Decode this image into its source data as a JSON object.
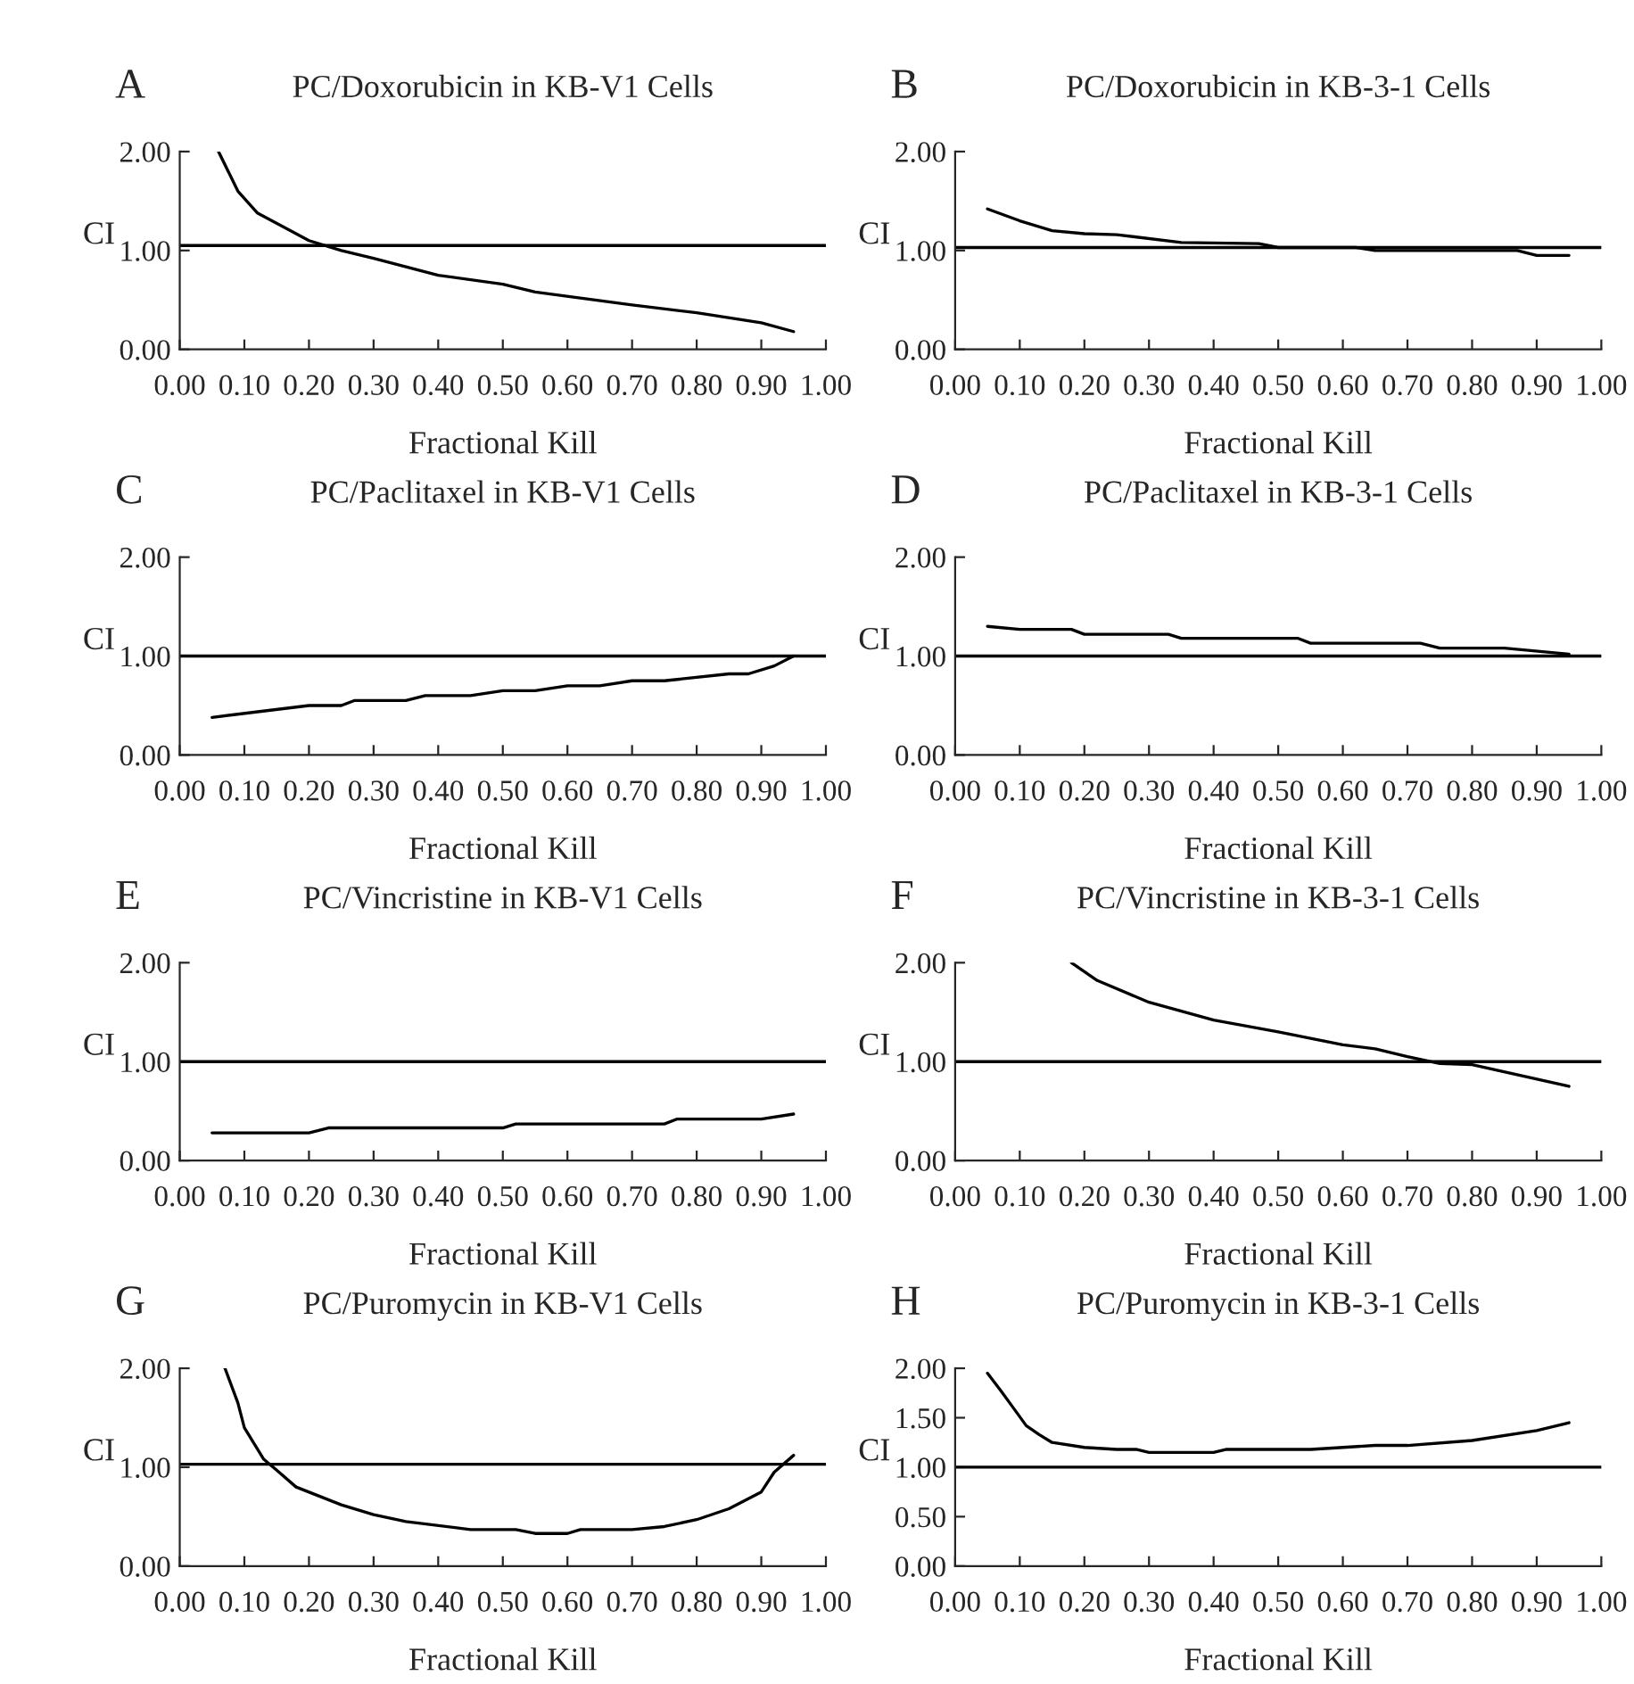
{
  "chart_data": [
    {
      "type": "line",
      "title": "PC/Doxorubicin in KB-V1 Cells",
      "xlabel": "Fractional Kill",
      "ylabel": "CI",
      "annotations": [
        "A"
      ],
      "xlim": [
        0,
        1
      ],
      "ylim": [
        0,
        2
      ],
      "xticks": [
        {
          "value": 0,
          "label": "0.00"
        },
        {
          "value": 0.1,
          "label": "0.10"
        },
        {
          "value": 0.2,
          "label": "0.20"
        },
        {
          "value": 0.3,
          "label": "0.30"
        },
        {
          "value": 0.4,
          "label": "0.40"
        },
        {
          "value": 0.5,
          "label": "0.50"
        },
        {
          "value": 0.6,
          "label": "0.60"
        },
        {
          "value": 0.7,
          "label": "0.70"
        },
        {
          "value": 0.8,
          "label": "0.80"
        },
        {
          "value": 0.9,
          "label": "0.90"
        },
        {
          "value": 1,
          "label": "1.00"
        }
      ],
      "yticks": [
        {
          "value": 0,
          "label": "0.00"
        },
        {
          "value": 1,
          "label": "1.00"
        },
        {
          "value": 2,
          "label": "2.00"
        }
      ],
      "grid": false,
      "legend": false,
      "ref_lines": [
        {
          "axis": "y",
          "value": 1.05,
          "color": "#000000"
        }
      ],
      "series": [
        {
          "color": "#000000",
          "x": [
            0.06,
            0.09,
            0.12,
            0.2,
            0.25,
            0.3,
            0.4,
            0.5,
            0.55,
            0.7,
            0.8,
            0.9,
            0.95
          ],
          "values": [
            2.0,
            1.6,
            1.38,
            1.1,
            1.0,
            0.92,
            0.75,
            0.66,
            0.58,
            0.45,
            0.37,
            0.27,
            0.18
          ]
        }
      ]
    },
    {
      "type": "line",
      "title": "PC/Doxorubicin in KB-3-1 Cells",
      "xlabel": "Fractional Kill",
      "ylabel": "CI",
      "annotations": [
        "B"
      ],
      "xlim": [
        0,
        1
      ],
      "ylim": [
        0,
        2
      ],
      "xticks": [
        {
          "value": 0,
          "label": "0.00"
        },
        {
          "value": 0.1,
          "label": "0.10"
        },
        {
          "value": 0.2,
          "label": "0.20"
        },
        {
          "value": 0.3,
          "label": "0.30"
        },
        {
          "value": 0.4,
          "label": "0.40"
        },
        {
          "value": 0.5,
          "label": "0.50"
        },
        {
          "value": 0.6,
          "label": "0.60"
        },
        {
          "value": 0.7,
          "label": "0.70"
        },
        {
          "value": 0.8,
          "label": "0.80"
        },
        {
          "value": 0.9,
          "label": "0.90"
        },
        {
          "value": 1,
          "label": "1.00"
        }
      ],
      "yticks": [
        {
          "value": 0,
          "label": "0.00"
        },
        {
          "value": 1,
          "label": "1.00"
        },
        {
          "value": 2,
          "label": "2.00"
        }
      ],
      "grid": false,
      "legend": false,
      "ref_lines": [
        {
          "axis": "y",
          "value": 1.03,
          "color": "#000000"
        }
      ],
      "series": [
        {
          "color": "#000000",
          "x": [
            0.05,
            0.1,
            0.15,
            0.2,
            0.25,
            0.35,
            0.47,
            0.5,
            0.62,
            0.65,
            0.87,
            0.9,
            0.95
          ],
          "values": [
            1.42,
            1.3,
            1.2,
            1.17,
            1.16,
            1.08,
            1.07,
            1.03,
            1.03,
            1.0,
            1.0,
            0.95,
            0.95
          ]
        }
      ]
    },
    {
      "type": "line",
      "title": "PC/Paclitaxel in KB-V1 Cells",
      "xlabel": "Fractional Kill",
      "ylabel": "CI",
      "annotations": [
        "C"
      ],
      "xlim": [
        0,
        1
      ],
      "ylim": [
        0,
        2
      ],
      "xticks": [
        {
          "value": 0,
          "label": "0.00"
        },
        {
          "value": 0.1,
          "label": "0.10"
        },
        {
          "value": 0.2,
          "label": "0.20"
        },
        {
          "value": 0.3,
          "label": "0.30"
        },
        {
          "value": 0.4,
          "label": "0.40"
        },
        {
          "value": 0.5,
          "label": "0.50"
        },
        {
          "value": 0.6,
          "label": "0.60"
        },
        {
          "value": 0.7,
          "label": "0.70"
        },
        {
          "value": 0.8,
          "label": "0.80"
        },
        {
          "value": 0.9,
          "label": "0.90"
        },
        {
          "value": 1,
          "label": "1.00"
        }
      ],
      "yticks": [
        {
          "value": 0,
          "label": "0.00"
        },
        {
          "value": 1,
          "label": "1.00"
        },
        {
          "value": 2,
          "label": "2.00"
        }
      ],
      "grid": false,
      "legend": false,
      "ref_lines": [
        {
          "axis": "y",
          "value": 1,
          "color": "#000000"
        }
      ],
      "series": [
        {
          "color": "#000000",
          "x": [
            0.05,
            0.2,
            0.25,
            0.27,
            0.35,
            0.38,
            0.45,
            0.5,
            0.55,
            0.6,
            0.65,
            0.7,
            0.75,
            0.85,
            0.88,
            0.92,
            0.95
          ],
          "values": [
            0.38,
            0.5,
            0.5,
            0.55,
            0.55,
            0.6,
            0.6,
            0.65,
            0.65,
            0.7,
            0.7,
            0.75,
            0.75,
            0.82,
            0.82,
            0.9,
            1.0
          ]
        }
      ]
    },
    {
      "type": "line",
      "title": "PC/Paclitaxel in KB-3-1 Cells",
      "xlabel": "Fractional Kill",
      "ylabel": "CI",
      "annotations": [
        "D"
      ],
      "xlim": [
        0,
        1
      ],
      "ylim": [
        0,
        2
      ],
      "xticks": [
        {
          "value": 0,
          "label": "0.00"
        },
        {
          "value": 0.1,
          "label": "0.10"
        },
        {
          "value": 0.2,
          "label": "0.20"
        },
        {
          "value": 0.3,
          "label": "0.30"
        },
        {
          "value": 0.4,
          "label": "0.40"
        },
        {
          "value": 0.5,
          "label": "0.50"
        },
        {
          "value": 0.6,
          "label": "0.60"
        },
        {
          "value": 0.7,
          "label": "0.70"
        },
        {
          "value": 0.8,
          "label": "0.80"
        },
        {
          "value": 0.9,
          "label": "0.90"
        },
        {
          "value": 1,
          "label": "1.00"
        }
      ],
      "yticks": [
        {
          "value": 0,
          "label": "0.00"
        },
        {
          "value": 1,
          "label": "1.00"
        },
        {
          "value": 2,
          "label": "2.00"
        }
      ],
      "grid": false,
      "legend": false,
      "ref_lines": [
        {
          "axis": "y",
          "value": 1,
          "color": "#000000"
        }
      ],
      "series": [
        {
          "color": "#000000",
          "x": [
            0.05,
            0.1,
            0.18,
            0.2,
            0.33,
            0.35,
            0.53,
            0.55,
            0.72,
            0.75,
            0.85,
            0.95
          ],
          "values": [
            1.3,
            1.27,
            1.27,
            1.22,
            1.22,
            1.18,
            1.18,
            1.13,
            1.13,
            1.08,
            1.08,
            1.02
          ]
        }
      ]
    },
    {
      "type": "line",
      "title": "PC/Vincristine in KB-V1 Cells",
      "xlabel": "Fractional Kill",
      "ylabel": "CI",
      "annotations": [
        "E"
      ],
      "xlim": [
        0,
        1
      ],
      "ylim": [
        0,
        2
      ],
      "xticks": [
        {
          "value": 0,
          "label": "0.00"
        },
        {
          "value": 0.1,
          "label": "0.10"
        },
        {
          "value": 0.2,
          "label": "0.20"
        },
        {
          "value": 0.3,
          "label": "0.30"
        },
        {
          "value": 0.4,
          "label": "0.40"
        },
        {
          "value": 0.5,
          "label": "0.50"
        },
        {
          "value": 0.6,
          "label": "0.60"
        },
        {
          "value": 0.7,
          "label": "0.70"
        },
        {
          "value": 0.8,
          "label": "0.80"
        },
        {
          "value": 0.9,
          "label": "0.90"
        },
        {
          "value": 1,
          "label": "1.00"
        }
      ],
      "yticks": [
        {
          "value": 0,
          "label": "0.00"
        },
        {
          "value": 1,
          "label": "1.00"
        },
        {
          "value": 2,
          "label": "2.00"
        }
      ],
      "grid": false,
      "legend": false,
      "ref_lines": [
        {
          "axis": "y",
          "value": 1,
          "color": "#000000"
        }
      ],
      "series": [
        {
          "color": "#000000",
          "x": [
            0.05,
            0.2,
            0.23,
            0.5,
            0.52,
            0.75,
            0.77,
            0.9,
            0.95
          ],
          "values": [
            0.28,
            0.28,
            0.33,
            0.33,
            0.37,
            0.37,
            0.42,
            0.42,
            0.47
          ]
        }
      ]
    },
    {
      "type": "line",
      "title": "PC/Vincristine in KB-3-1 Cells",
      "xlabel": "Fractional Kill",
      "ylabel": "CI",
      "annotations": [
        "F"
      ],
      "xlim": [
        0,
        1
      ],
      "ylim": [
        0,
        2
      ],
      "xticks": [
        {
          "value": 0,
          "label": "0.00"
        },
        {
          "value": 0.1,
          "label": "0.10"
        },
        {
          "value": 0.2,
          "label": "0.20"
        },
        {
          "value": 0.3,
          "label": "0.30"
        },
        {
          "value": 0.4,
          "label": "0.40"
        },
        {
          "value": 0.5,
          "label": "0.50"
        },
        {
          "value": 0.6,
          "label": "0.60"
        },
        {
          "value": 0.7,
          "label": "0.70"
        },
        {
          "value": 0.8,
          "label": "0.80"
        },
        {
          "value": 0.9,
          "label": "0.90"
        },
        {
          "value": 1,
          "label": "1.00"
        }
      ],
      "yticks": [
        {
          "value": 0,
          "label": "0.00"
        },
        {
          "value": 1,
          "label": "1.00"
        },
        {
          "value": 2,
          "label": "2.00"
        }
      ],
      "grid": false,
      "legend": false,
      "ref_lines": [
        {
          "axis": "y",
          "value": 1,
          "color": "#000000"
        }
      ],
      "series": [
        {
          "color": "#000000",
          "x": [
            0.18,
            0.22,
            0.3,
            0.4,
            0.5,
            0.6,
            0.65,
            0.7,
            0.75,
            0.8,
            0.95
          ],
          "values": [
            2.0,
            1.82,
            1.6,
            1.42,
            1.3,
            1.17,
            1.13,
            1.05,
            0.98,
            0.97,
            0.75
          ]
        }
      ]
    },
    {
      "type": "line",
      "title": "PC/Puromycin in KB-V1 Cells",
      "xlabel": "Fractional Kill",
      "ylabel": "CI",
      "annotations": [
        "G"
      ],
      "xlim": [
        0,
        1
      ],
      "ylim": [
        0,
        2
      ],
      "xticks": [
        {
          "value": 0,
          "label": "0.00"
        },
        {
          "value": 0.1,
          "label": "0.10"
        },
        {
          "value": 0.2,
          "label": "0.20"
        },
        {
          "value": 0.3,
          "label": "0.30"
        },
        {
          "value": 0.4,
          "label": "0.40"
        },
        {
          "value": 0.5,
          "label": "0.50"
        },
        {
          "value": 0.6,
          "label": "0.60"
        },
        {
          "value": 0.7,
          "label": "0.70"
        },
        {
          "value": 0.8,
          "label": "0.80"
        },
        {
          "value": 0.9,
          "label": "0.90"
        },
        {
          "value": 1,
          "label": "1.00"
        }
      ],
      "yticks": [
        {
          "value": 0,
          "label": "0.00"
        },
        {
          "value": 1,
          "label": "1.00"
        },
        {
          "value": 2,
          "label": "2.00"
        }
      ],
      "grid": false,
      "legend": false,
      "ref_lines": [
        {
          "axis": "y",
          "value": 1.03,
          "color": "#000000"
        }
      ],
      "series": [
        {
          "color": "#000000",
          "x": [
            0.07,
            0.09,
            0.1,
            0.13,
            0.15,
            0.18,
            0.25,
            0.3,
            0.35,
            0.45,
            0.52,
            0.55,
            0.6,
            0.62,
            0.7,
            0.75,
            0.8,
            0.85,
            0.9,
            0.92,
            0.95
          ],
          "values": [
            2.0,
            1.65,
            1.4,
            1.08,
            0.97,
            0.8,
            0.62,
            0.52,
            0.45,
            0.37,
            0.37,
            0.33,
            0.33,
            0.37,
            0.37,
            0.4,
            0.47,
            0.58,
            0.75,
            0.95,
            1.12
          ]
        }
      ]
    },
    {
      "type": "line",
      "title": "PC/Puromycin in KB-3-1 Cells",
      "xlabel": "Fractional Kill",
      "ylabel": "CI",
      "annotations": [
        "H"
      ],
      "xlim": [
        0,
        1
      ],
      "ylim": [
        0,
        2
      ],
      "xticks": [
        {
          "value": 0,
          "label": "0.00"
        },
        {
          "value": 0.1,
          "label": "0.10"
        },
        {
          "value": 0.2,
          "label": "0.20"
        },
        {
          "value": 0.3,
          "label": "0.30"
        },
        {
          "value": 0.4,
          "label": "0.40"
        },
        {
          "value": 0.5,
          "label": "0.50"
        },
        {
          "value": 0.6,
          "label": "0.60"
        },
        {
          "value": 0.7,
          "label": "0.70"
        },
        {
          "value": 0.8,
          "label": "0.80"
        },
        {
          "value": 0.9,
          "label": "0.90"
        },
        {
          "value": 1,
          "label": "1.00"
        }
      ],
      "yticks": [
        {
          "value": 0,
          "label": "0.00"
        },
        {
          "value": 0.5,
          "label": "0.50"
        },
        {
          "value": 1,
          "label": "1.00"
        },
        {
          "value": 1.5,
          "label": "1.50"
        },
        {
          "value": 2,
          "label": "2.00"
        }
      ],
      "grid": false,
      "legend": false,
      "ref_lines": [
        {
          "axis": "y",
          "value": 1,
          "color": "#000000"
        }
      ],
      "series": [
        {
          "color": "#000000",
          "x": [
            0.05,
            0.07,
            0.09,
            0.11,
            0.13,
            0.15,
            0.2,
            0.25,
            0.28,
            0.3,
            0.4,
            0.42,
            0.55,
            0.65,
            0.7,
            0.8,
            0.9,
            0.95
          ],
          "values": [
            1.95,
            1.78,
            1.6,
            1.42,
            1.33,
            1.25,
            1.2,
            1.18,
            1.18,
            1.15,
            1.15,
            1.18,
            1.18,
            1.22,
            1.22,
            1.27,
            1.37,
            1.45
          ]
        }
      ]
    }
  ]
}
